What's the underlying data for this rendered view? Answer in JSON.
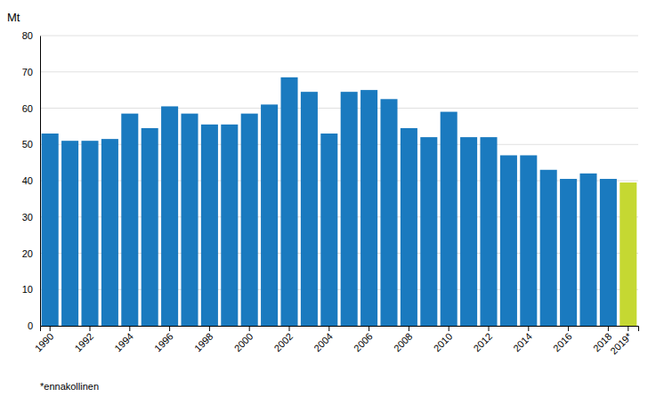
{
  "chart_data": {
    "type": "bar",
    "y_label": "Mt",
    "footnote": "*ennakollinen",
    "categories": [
      "1990",
      null,
      "1992",
      null,
      "1994",
      null,
      "1996",
      null,
      "1998",
      null,
      "2000",
      null,
      "2002",
      null,
      "2004",
      null,
      "2006",
      null,
      "2008",
      null,
      "2010",
      null,
      "2012",
      null,
      "2014",
      null,
      "2016",
      null,
      "2018",
      "2019*"
    ],
    "values": [
      53.0,
      51.0,
      51.0,
      51.5,
      58.5,
      54.5,
      60.5,
      58.5,
      55.5,
      55.5,
      58.5,
      61.0,
      68.5,
      64.5,
      53.0,
      64.5,
      65.0,
      62.5,
      54.5,
      52.0,
      59.0,
      52.0,
      52.0,
      47.0,
      47.0,
      43.0,
      40.5,
      42.0,
      40.5,
      39.5
    ],
    "colors": [
      "#1a7abf",
      "#1a7abf",
      "#1a7abf",
      "#1a7abf",
      "#1a7abf",
      "#1a7abf",
      "#1a7abf",
      "#1a7abf",
      "#1a7abf",
      "#1a7abf",
      "#1a7abf",
      "#1a7abf",
      "#1a7abf",
      "#1a7abf",
      "#1a7abf",
      "#1a7abf",
      "#1a7abf",
      "#1a7abf",
      "#1a7abf",
      "#1a7abf",
      "#1a7abf",
      "#1a7abf",
      "#1a7abf",
      "#1a7abf",
      "#1a7abf",
      "#1a7abf",
      "#1a7abf",
      "#1a7abf",
      "#1a7abf",
      "#c5d832"
    ],
    "ylim": [
      0,
      80
    ],
    "yticks": [
      0,
      10,
      20,
      30,
      40,
      50,
      60,
      70,
      80
    ],
    "grid": true
  }
}
